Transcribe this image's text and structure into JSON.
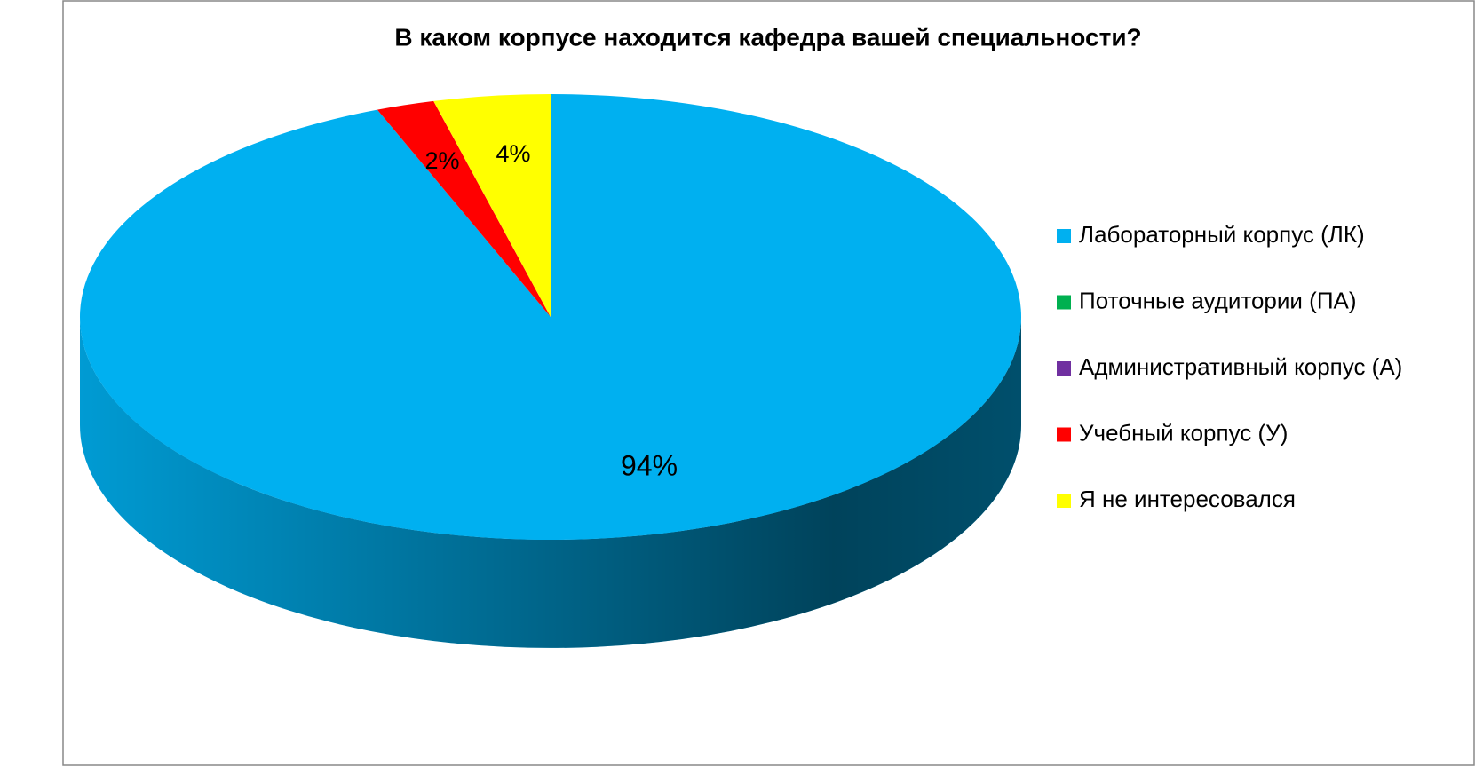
{
  "chart_data": {
    "type": "pie",
    "title": "В каком корпусе находится кафедра вашей специальности?",
    "categories": [
      "Лабораторный корпус (ЛК)",
      "Поточные аудитории (ПА)",
      "Административный корпус (А)",
      "Учебный корпус (У)",
      "Я не интересовался"
    ],
    "values": [
      94,
      0,
      0,
      2,
      4
    ],
    "value_labels": [
      "94%",
      null,
      null,
      "2%",
      "4%"
    ],
    "colors": [
      "#00b0f0",
      "#00b050",
      "#7030a0",
      "#ff0000",
      "#ffff00"
    ],
    "legend": "right"
  }
}
